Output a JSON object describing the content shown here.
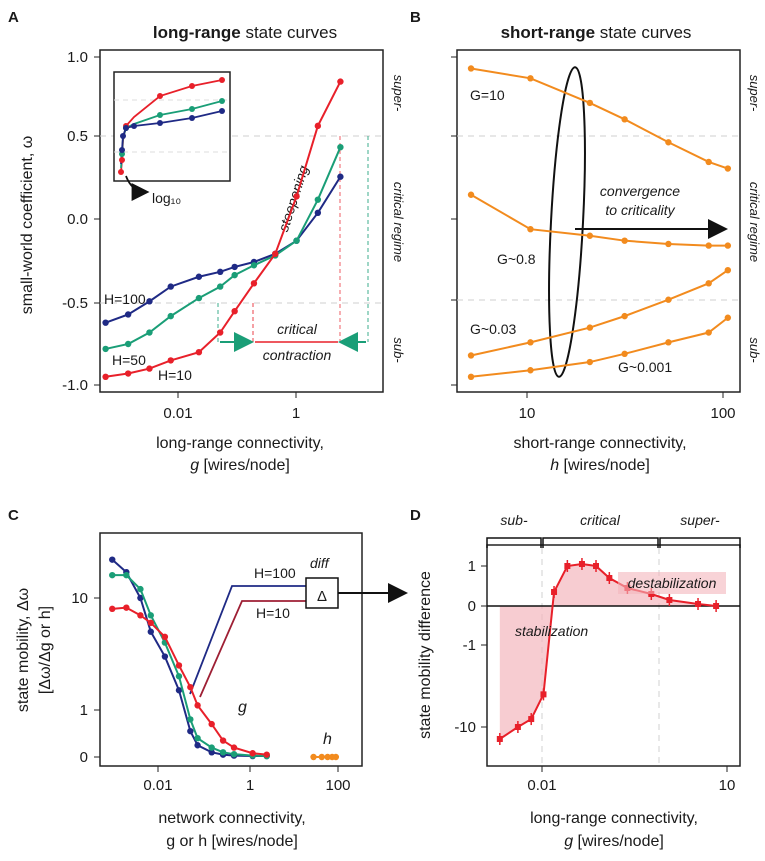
{
  "colors": {
    "red": "#e8202a",
    "green": "#1a9e77",
    "navy": "#1f2a85",
    "orange": "#f28b1e",
    "shade": "#f4b6bd",
    "darkred": "#8c2030",
    "grid": "#cfcfcf"
  },
  "panelA": {
    "label": "A",
    "title_bold": "long-range",
    "title_rest": " state curves",
    "ylabel": "small-world coefficient, ω",
    "xlabel_line1": "long-range connectivity,",
    "xlabel_var": "g",
    "xlabel_rest": " [wires/node]",
    "yticks": [
      "1.0",
      "0.5",
      "0.0",
      "-0.5",
      "-1.0"
    ],
    "xticks": [
      "0.01",
      "1"
    ],
    "right_labels": [
      "super-",
      "critical regime",
      "sub-"
    ],
    "inset_label": "log₁₀",
    "ann_steepening": "steepening",
    "ann_critical": "critical",
    "ann_contraction": "contraction",
    "series_labels": [
      "H=100",
      "H=50",
      "H=10"
    ]
  },
  "panelB": {
    "label": "B",
    "title_bold": "short-range",
    "title_rest": " state curves",
    "xlabel_line1": "short-range connectivity,",
    "xlabel_var": "h",
    "xlabel_rest": " [wires/node]",
    "xticks": [
      "10",
      "100"
    ],
    "right_labels": [
      "super-",
      "critical regime",
      "sub-"
    ],
    "conv_line1": "convergence",
    "conv_line2": "to criticality",
    "curve_labels": [
      "G=10",
      "G~0.8",
      "G~0.03",
      "G~0.001"
    ]
  },
  "panelC": {
    "label": "C",
    "ylabel_line1": "state mobility, Δω",
    "ylabel_line2": "[Δω/Δg or h]",
    "xlabel_line1": "network connectivity,",
    "xlabel_line2": "g or h [wires/node]",
    "yticks": [
      "10",
      "1",
      "0"
    ],
    "xticks": [
      "0.01",
      "1",
      "100"
    ],
    "lbl_g": "g",
    "lbl_h": "h",
    "lbl_h100": "H=100",
    "lbl_h10": "H=10",
    "lbl_diff": "diff",
    "delta": "Δ"
  },
  "panelD": {
    "label": "D",
    "ylabel": "state mobility difference",
    "xlabel_line1": "long-range connectivity,",
    "xlabel_var": "g",
    "xlabel_rest": " [wires/node]",
    "yticks": [
      "1",
      "0",
      "-1",
      "-10"
    ],
    "xticks": [
      "0.01",
      "10"
    ],
    "top_labels": [
      "sub-",
      "critical",
      "super-"
    ],
    "ann_destab": "destabilization",
    "ann_stab": "stabilization"
  },
  "chart_data": [
    {
      "panel": "A",
      "type": "line",
      "title": "long-range state curves",
      "xlabel": "long-range connectivity, g [wires/node]",
      "ylabel": "small-world coefficient, ω",
      "xscale": "log",
      "xlim": [
        0.001,
        10
      ],
      "ylim": [
        -1.05,
        1.05
      ],
      "series": [
        {
          "name": "H=10",
          "color": "red",
          "x": [
            0.0012,
            0.0025,
            0.005,
            0.01,
            0.025,
            0.05,
            0.08,
            0.15,
            0.3,
            0.6,
            1.2,
            2.5
          ],
          "y": [
            -0.95,
            -0.93,
            -0.9,
            -0.85,
            -0.8,
            -0.68,
            -0.55,
            -0.38,
            -0.2,
            0.15,
            0.58,
            0.85
          ]
        },
        {
          "name": "H=50",
          "color": "green",
          "x": [
            0.0012,
            0.0025,
            0.005,
            0.01,
            0.025,
            0.05,
            0.08,
            0.15,
            0.3,
            0.6,
            1.2,
            2.5
          ],
          "y": [
            -0.78,
            -0.75,
            -0.68,
            -0.58,
            -0.47,
            -0.4,
            -0.33,
            -0.27,
            -0.21,
            -0.12,
            0.13,
            0.45
          ]
        },
        {
          "name": "H=100",
          "color": "navy",
          "x": [
            0.0012,
            0.0025,
            0.005,
            0.01,
            0.025,
            0.05,
            0.08,
            0.15,
            0.3,
            0.6,
            1.2,
            2.5
          ],
          "y": [
            -0.62,
            -0.57,
            -0.49,
            -0.4,
            -0.34,
            -0.31,
            -0.28,
            -0.25,
            -0.2,
            -0.12,
            0.05,
            0.27
          ]
        }
      ],
      "regimes": [
        "super-",
        "critical regime",
        "sub-"
      ]
    },
    {
      "panel": "B",
      "type": "line",
      "title": "short-range state curves",
      "xlabel": "short-range connectivity, h [wires/node]",
      "xscale": "log",
      "xlim": [
        4.5,
        110
      ],
      "ylim": [
        -1.05,
        1.05
      ],
      "series": [
        {
          "name": "G=10",
          "color": "orange",
          "x": [
            5,
            10,
            20,
            30,
            50,
            80,
            100
          ],
          "y": [
            0.93,
            0.87,
            0.72,
            0.62,
            0.48,
            0.36,
            0.32
          ]
        },
        {
          "name": "G~0.8",
          "color": "orange",
          "x": [
            5,
            10,
            20,
            30,
            50,
            80,
            100
          ],
          "y": [
            0.16,
            -0.05,
            -0.09,
            -0.12,
            -0.14,
            -0.15,
            -0.15
          ]
        },
        {
          "name": "G~0.03",
          "color": "orange",
          "x": [
            5,
            10,
            20,
            30,
            50,
            80,
            100
          ],
          "y": [
            -0.82,
            -0.74,
            -0.65,
            -0.58,
            -0.48,
            -0.38,
            -0.3
          ]
        },
        {
          "name": "G~0.001",
          "color": "orange",
          "x": [
            5,
            10,
            20,
            30,
            50,
            80,
            100
          ],
          "y": [
            -0.95,
            -0.91,
            -0.86,
            -0.81,
            -0.74,
            -0.68,
            -0.59
          ]
        }
      ]
    },
    {
      "panel": "C",
      "type": "line",
      "xlabel": "network connectivity, g or h [wires/node]",
      "ylabel": "state mobility, Δω [Δω/Δg or h]",
      "xscale": "log",
      "yticks_shown": [
        "10",
        "1",
        "0"
      ],
      "series": [
        {
          "name": "H=100 (g)",
          "color": "navy",
          "x": [
            0.0015,
            0.003,
            0.006,
            0.01,
            0.02,
            0.04,
            0.07,
            0.1,
            0.2,
            0.35,
            0.6,
            1.5,
            3
          ],
          "y": [
            22,
            17,
            10,
            5,
            3,
            1.5,
            0.55,
            0.25,
            0.1,
            0.05,
            0.03,
            0.02,
            0.02
          ]
        },
        {
          "name": "H=50 (g)",
          "color": "green",
          "x": [
            0.0015,
            0.003,
            0.006,
            0.01,
            0.02,
            0.04,
            0.07,
            0.1,
            0.2,
            0.35,
            0.6,
            1.5,
            3
          ],
          "y": [
            16,
            16,
            12,
            7,
            4,
            2,
            0.8,
            0.4,
            0.2,
            0.1,
            0.06,
            0.03,
            0.02
          ]
        },
        {
          "name": "H=10 (g)",
          "color": "red",
          "x": [
            0.0015,
            0.003,
            0.006,
            0.01,
            0.02,
            0.04,
            0.07,
            0.1,
            0.2,
            0.35,
            0.6,
            1.5,
            3
          ],
          "y": [
            8,
            8.2,
            7,
            6,
            4.5,
            2.5,
            1.6,
            1.1,
            0.7,
            0.35,
            0.2,
            0.08,
            0.05
          ]
        },
        {
          "name": "h",
          "color": "orange",
          "x": [
            30,
            45,
            60,
            75,
            90
          ],
          "y": [
            0.0,
            0.0,
            0.0,
            0.0,
            0.0
          ]
        }
      ]
    },
    {
      "panel": "D",
      "type": "line",
      "xlabel": "long-range connectivity, g [wires/node]",
      "ylabel": "state mobility difference",
      "xscale": "log",
      "x": [
        0.0015,
        0.003,
        0.005,
        0.008,
        0.012,
        0.02,
        0.035,
        0.06,
        0.1,
        0.2,
        0.5,
        1.0,
        3.0,
        6.0
      ],
      "y": [
        -14,
        -10,
        -8,
        -4,
        0.35,
        1.0,
        1.05,
        1.0,
        0.7,
        0.45,
        0.3,
        0.15,
        0.05,
        0.0
      ],
      "shaded_regions": [
        "stabilization",
        "destabilization"
      ],
      "regimes": [
        "sub-",
        "critical",
        "super-"
      ]
    }
  ]
}
